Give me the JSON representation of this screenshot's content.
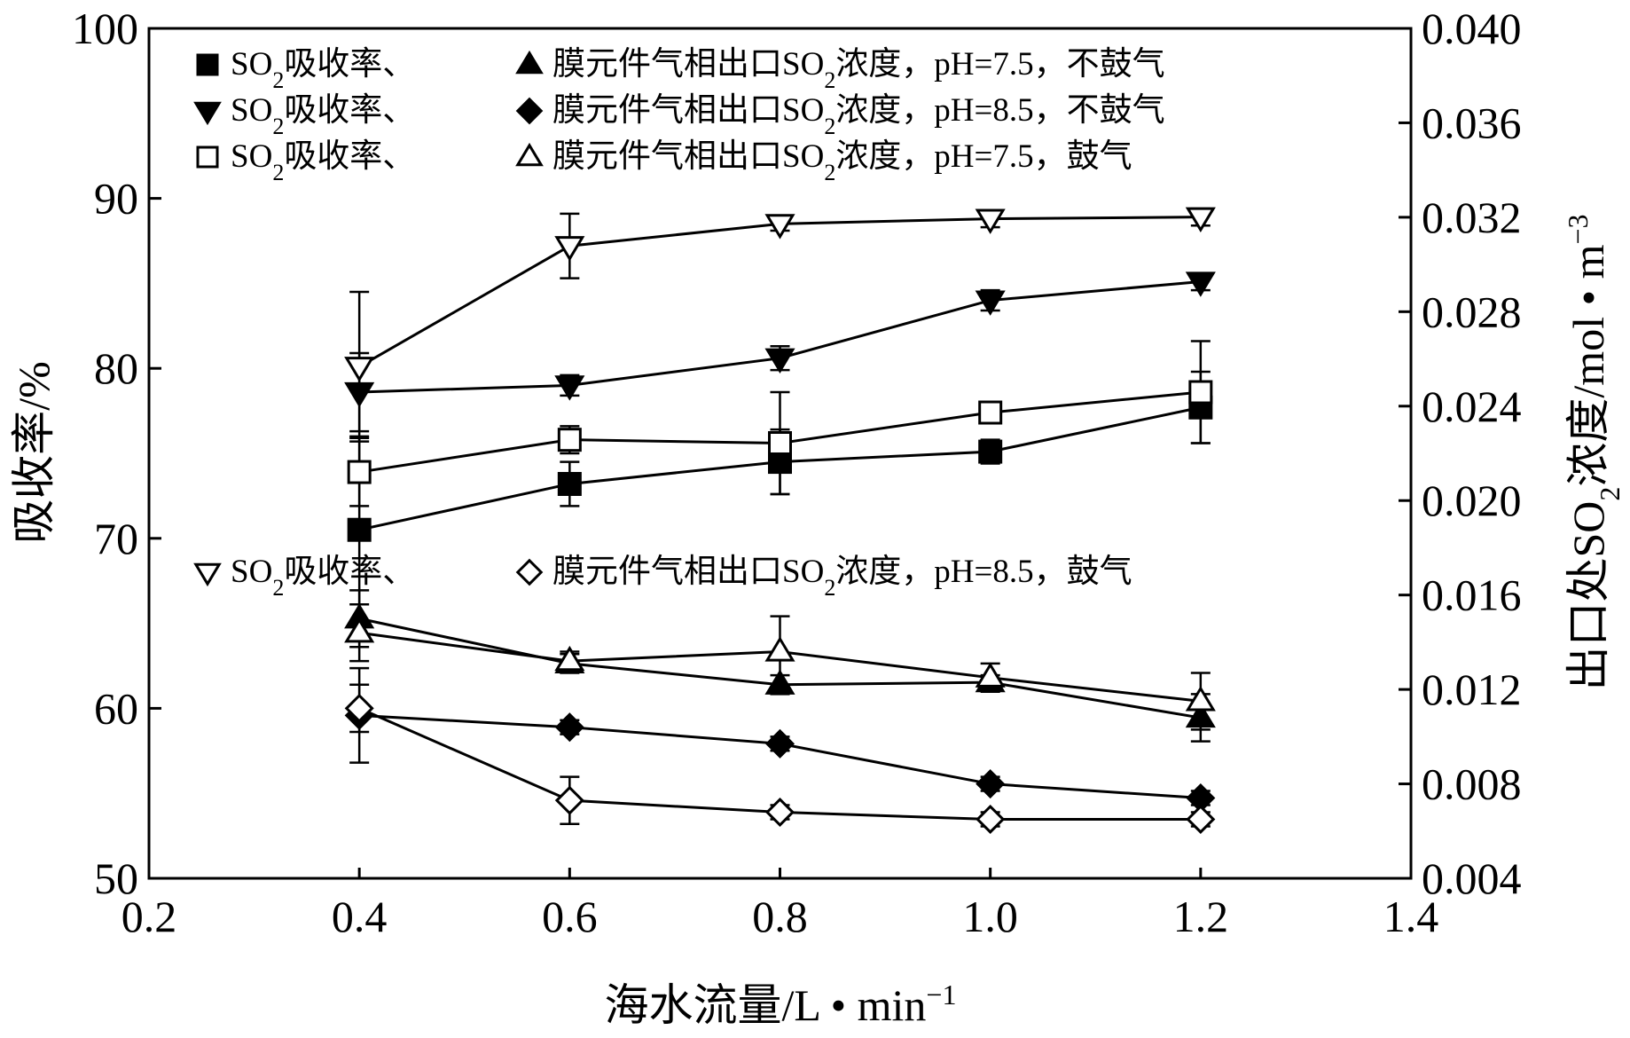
{
  "chart_data": {
    "type": "line",
    "x_axis": {
      "label_main": "海水流量/L • min",
      "label_sup": "−1",
      "range": [
        0.2,
        1.4
      ],
      "ticks": [
        0.2,
        0.4,
        0.6,
        0.8,
        1.0,
        1.2,
        1.4
      ],
      "tick_labels": [
        "0.2",
        "0.4",
        "0.6",
        "0.8",
        "1.0",
        "1.2",
        "1.4"
      ]
    },
    "y_left": {
      "label": "吸收率/%",
      "range": [
        50,
        100
      ],
      "ticks": [
        50,
        60,
        70,
        80,
        90,
        100
      ],
      "tick_labels": [
        "50",
        "60",
        "70",
        "80",
        "90",
        "100"
      ]
    },
    "y_right": {
      "label_pre": "出口处SO",
      "label_sub": "2",
      "label_mid": "浓度/mol • m",
      "label_sup": "−3",
      "range": [
        0.004,
        0.04
      ],
      "ticks": [
        0.004,
        0.008,
        0.012,
        0.016,
        0.02,
        0.024,
        0.028,
        0.032,
        0.036,
        0.04
      ],
      "tick_labels": [
        "0.004",
        "0.008",
        "0.012",
        "0.016",
        "0.020",
        "0.024",
        "0.028",
        "0.032",
        "0.036",
        "0.040"
      ]
    },
    "x": [
      0.4,
      0.6,
      0.8,
      1.0,
      1.2
    ],
    "series": [
      {
        "name": "SO2吸收率, pH=7.5, 不鼓气",
        "marker": "square-filled",
        "axis": "left",
        "values": [
          70.5,
          73.2,
          74.5,
          75.1,
          77.7
        ],
        "errors": [
          5.5,
          1.3,
          1.9,
          0.7,
          2.1
        ]
      },
      {
        "name": "SO2吸收率, pH=8.5, 不鼓气",
        "marker": "triangle-down-filled",
        "axis": "left",
        "values": [
          78.6,
          79.0,
          80.6,
          84.0,
          85.1
        ],
        "errors": [
          2.3,
          0.6,
          0.7,
          0.6,
          0.5
        ]
      },
      {
        "name": "SO2吸收率, pH=7.5, 鼓气",
        "marker": "square-open",
        "axis": "left",
        "values": [
          73.9,
          75.8,
          75.6,
          77.4,
          78.6
        ],
        "errors": [
          2.0,
          0.8,
          3.0,
          0.3,
          3.0
        ]
      },
      {
        "name": "SO2吸收率, pH=8.5, 鼓气",
        "marker": "triangle-down-open",
        "axis": "left",
        "values": [
          80.1,
          87.2,
          88.5,
          88.8,
          88.9
        ],
        "errors": [
          4.4,
          1.9,
          0.4,
          0.5,
          0.5
        ]
      },
      {
        "name": "膜元件气相出口SO2浓度, pH=7.5, 不鼓气",
        "marker": "triangle-filled",
        "axis": "right",
        "values": [
          0.015,
          0.0131,
          0.0122,
          0.0123,
          0.0108
        ],
        "errors": [
          0.0012,
          0.0004,
          0.0004,
          0.0003,
          0.001
        ]
      },
      {
        "name": "膜元件气相出口SO2浓度, pH=8.5, 不鼓气",
        "marker": "diamond-filled",
        "axis": "right",
        "values": [
          0.0109,
          0.0104,
          0.0097,
          0.008,
          0.0074
        ],
        "errors": [
          0.002,
          0.0003,
          0.0003,
          0.0003,
          0.0003
        ]
      },
      {
        "name": "膜元件气相出口SO2浓度, pH=7.5, 鼓气",
        "marker": "triangle-open",
        "axis": "right",
        "values": [
          0.0144,
          0.0132,
          0.0136,
          0.0125,
          0.0115
        ],
        "errors": [
          0.0012,
          0.0004,
          0.0015,
          0.0006,
          0.0012
        ]
      },
      {
        "name": "膜元件气相出口SO2浓度, pH=8.5, 鼓气",
        "marker": "diamond-open",
        "axis": "right",
        "values": [
          0.0112,
          0.0073,
          0.0068,
          0.0065,
          0.0065
        ],
        "errors": [
          0.001,
          0.001,
          0.0003,
          0.0003,
          0.0003
        ]
      }
    ],
    "legend": [
      {
        "markers": [
          "square-filled",
          "triangle-filled"
        ],
        "a1": "SO",
        "a2": "吸收率、",
        "b1": "膜元件气相出口SO",
        "b2": "浓度，pH=7.5，不鼓气"
      },
      {
        "markers": [
          "triangle-down-filled",
          "diamond-filled"
        ],
        "a1": "SO",
        "a2": "吸收率、",
        "b1": "膜元件气相出口SO",
        "b2": "浓度，pH=8.5，不鼓气"
      },
      {
        "markers": [
          "square-open",
          "triangle-open"
        ],
        "a1": "SO",
        "a2": "吸收率、",
        "b1": "膜元件气相出口SO",
        "b2": "浓度，pH=7.5，鼓气"
      },
      {
        "markers": [
          "triangle-down-open",
          "diamond-open"
        ],
        "a1": "SO",
        "a2": "吸收率、",
        "b1": "膜元件气相出口SO",
        "b2": "浓度，pH=8.5，鼓气"
      }
    ],
    "subscript": "2"
  }
}
